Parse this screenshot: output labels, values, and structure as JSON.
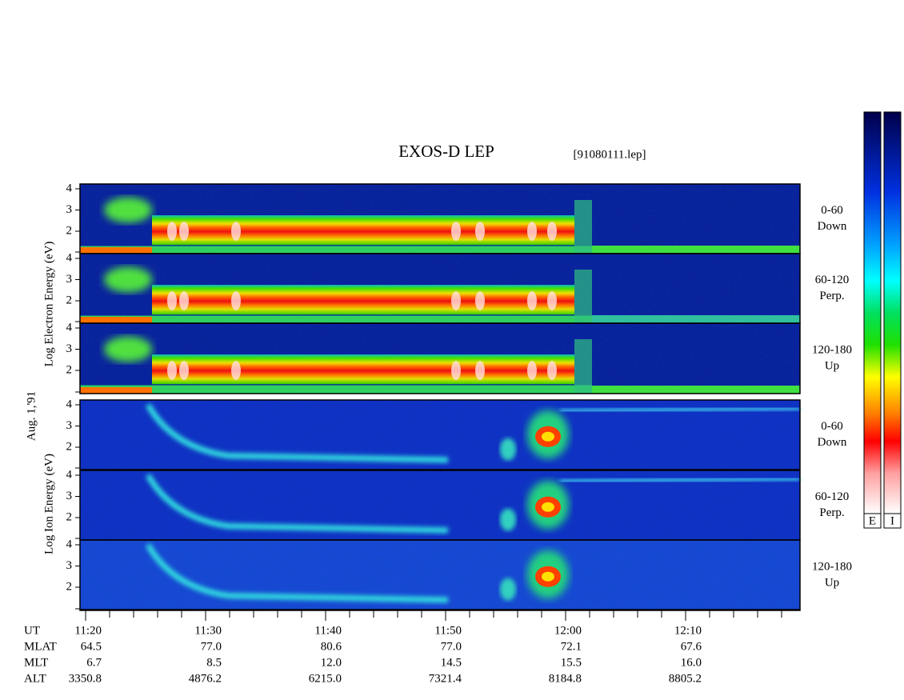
{
  "title": "EXOS-D LEP",
  "file": "[91080111.lep]",
  "date": "Aug. 1,'91",
  "electron_axis_label": "Log Electron Energy (eV)",
  "ion_axis_label": "Log Ion Energy (eV)",
  "energy_ticks": [
    "2",
    "3",
    "4"
  ],
  "electron_panels": [
    [
      "0-60",
      "Down"
    ],
    [
      "60-120",
      "Perp."
    ],
    [
      "120-180",
      "Up"
    ]
  ],
  "ion_panels": [
    [
      "0-60",
      "Down"
    ],
    [
      "60-120",
      "Perp."
    ],
    [
      "120-180",
      "Up"
    ]
  ],
  "ephemeris": [
    [
      "UT",
      "11:20",
      "11:30",
      "11:40",
      "11:50",
      "12:00",
      "12:10"
    ],
    [
      "MLAT",
      "64.5",
      "77.0",
      "80.6",
      "77.0",
      "72.1",
      "67.6"
    ],
    [
      "MLT",
      "6.7",
      "8.5",
      "12.0",
      "14.5",
      "15.5",
      "16.0"
    ],
    [
      "ALT",
      "3350.8",
      "4876.2",
      "6215.0",
      "7321.4",
      "8184.8",
      "8805.2"
    ]
  ],
  "colorbar_labels": [
    "E",
    "I"
  ]
}
